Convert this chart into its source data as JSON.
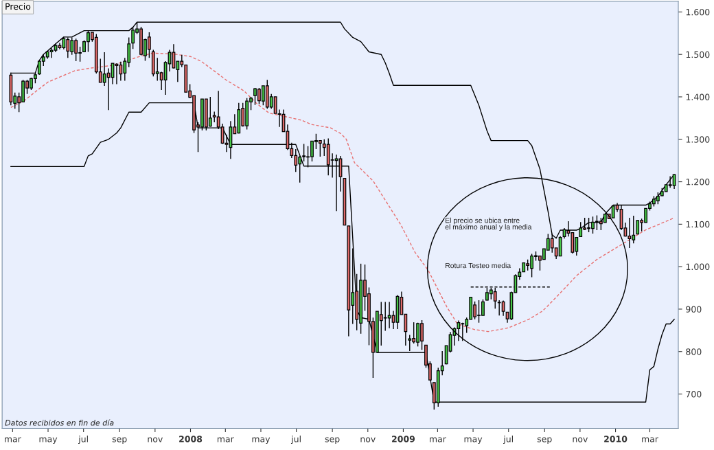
{
  "chart_data": {
    "type": "candlestick",
    "title": "Precio",
    "x": [
      "2007-02-26",
      "2007-03-05",
      "2007-03-12",
      "2007-03-19",
      "2007-03-26",
      "2007-04-02",
      "2007-04-09",
      "2007-04-16",
      "2007-04-23",
      "2007-04-30",
      "2007-05-07",
      "2007-05-14",
      "2007-05-21",
      "2007-05-28",
      "2007-06-04",
      "2007-06-11",
      "2007-06-18",
      "2007-06-25",
      "2007-07-02",
      "2007-07-09",
      "2007-07-16",
      "2007-07-23",
      "2007-07-30",
      "2007-08-06",
      "2007-08-13",
      "2007-08-20",
      "2007-08-27",
      "2007-09-03",
      "2007-09-10",
      "2007-09-17",
      "2007-09-24",
      "2007-10-01",
      "2007-10-08",
      "2007-10-15",
      "2007-10-22",
      "2007-10-29",
      "2007-11-05",
      "2007-11-12",
      "2007-11-19",
      "2007-11-26",
      "2007-12-03",
      "2007-12-10",
      "2007-12-17",
      "2007-12-24",
      "2007-12-31",
      "2008-01-07",
      "2008-01-14",
      "2008-01-21",
      "2008-01-28",
      "2008-02-04",
      "2008-02-11",
      "2008-02-18",
      "2008-02-25",
      "2008-03-03",
      "2008-03-10",
      "2008-03-17",
      "2008-03-24",
      "2008-03-31",
      "2008-04-07",
      "2008-04-14",
      "2008-04-21",
      "2008-04-28",
      "2008-05-05",
      "2008-05-12",
      "2008-05-19",
      "2008-05-26",
      "2008-06-02",
      "2008-06-09",
      "2008-06-16",
      "2008-06-23",
      "2008-06-30",
      "2008-07-07",
      "2008-07-14",
      "2008-07-21",
      "2008-07-28",
      "2008-08-04",
      "2008-08-11",
      "2008-08-18",
      "2008-08-25",
      "2008-09-01",
      "2008-09-08",
      "2008-09-15",
      "2008-09-22",
      "2008-09-29",
      "2008-10-06",
      "2008-10-13",
      "2008-10-20",
      "2008-10-27",
      "2008-11-03",
      "2008-11-10",
      "2008-11-17",
      "2008-11-24",
      "2008-12-01",
      "2008-12-08",
      "2008-12-15",
      "2008-12-22",
      "2008-12-29",
      "2009-01-05",
      "2009-01-12",
      "2009-01-19",
      "2009-01-26",
      "2009-02-02",
      "2009-02-09",
      "2009-02-16",
      "2009-02-23",
      "2009-03-02",
      "2009-03-09",
      "2009-03-16",
      "2009-03-23",
      "2009-03-30",
      "2009-04-06",
      "2009-04-13",
      "2009-04-20",
      "2009-04-27",
      "2009-05-04",
      "2009-05-11",
      "2009-05-18",
      "2009-05-25",
      "2009-06-01",
      "2009-06-08",
      "2009-06-15",
      "2009-06-22",
      "2009-06-29",
      "2009-07-06",
      "2009-07-13",
      "2009-07-20",
      "2009-07-27",
      "2009-08-03",
      "2009-08-10",
      "2009-08-17",
      "2009-08-24",
      "2009-08-31",
      "2009-09-07",
      "2009-09-14",
      "2009-09-21",
      "2009-09-28",
      "2009-10-05",
      "2009-10-12",
      "2009-10-19",
      "2009-10-26",
      "2009-11-02",
      "2009-11-09",
      "2009-11-16",
      "2009-11-23",
      "2009-11-30",
      "2009-12-07",
      "2009-12-14",
      "2009-12-21",
      "2009-12-28",
      "2010-01-04",
      "2010-01-11",
      "2010-01-18",
      "2010-01-25",
      "2010-02-01",
      "2010-02-08",
      "2010-02-15",
      "2010-02-22",
      "2010-03-01",
      "2010-03-08",
      "2010-03-15",
      "2010-03-22",
      "2010-03-29",
      "2010-04-05",
      "2010-04-12"
    ],
    "ohlc": [
      [
        1451,
        1457,
        1380,
        1388
      ],
      [
        1385,
        1410,
        1372,
        1402
      ],
      [
        1400,
        1410,
        1364,
        1386
      ],
      [
        1388,
        1440,
        1388,
        1437
      ],
      [
        1437,
        1440,
        1407,
        1421
      ],
      [
        1421,
        1445,
        1416,
        1443
      ],
      [
        1443,
        1457,
        1432,
        1452
      ],
      [
        1454,
        1486,
        1452,
        1484
      ],
      [
        1484,
        1500,
        1473,
        1494
      ],
      [
        1494,
        1508,
        1490,
        1506
      ],
      [
        1506,
        1515,
        1492,
        1510
      ],
      [
        1510,
        1525,
        1505,
        1521
      ],
      [
        1521,
        1527,
        1512,
        1516
      ],
      [
        1516,
        1541,
        1512,
        1537
      ],
      [
        1535,
        1540,
        1492,
        1508
      ],
      [
        1506,
        1540,
        1499,
        1533
      ],
      [
        1533,
        1537,
        1484,
        1503
      ],
      [
        1503,
        1518,
        1483,
        1504
      ],
      [
        1506,
        1533,
        1506,
        1530
      ],
      [
        1530,
        1556,
        1506,
        1551
      ],
      [
        1552,
        1552,
        1530,
        1535
      ],
      [
        1540,
        1548,
        1455,
        1459
      ],
      [
        1459,
        1490,
        1434,
        1434
      ],
      [
        1434,
        1505,
        1426,
        1454
      ],
      [
        1456,
        1467,
        1369,
        1446
      ],
      [
        1446,
        1479,
        1430,
        1479
      ],
      [
        1477,
        1479,
        1430,
        1474
      ],
      [
        1475,
        1483,
        1438,
        1454
      ],
      [
        1456,
        1492,
        1438,
        1484
      ],
      [
        1481,
        1540,
        1470,
        1525
      ],
      [
        1527,
        1564,
        1513,
        1557
      ],
      [
        1552,
        1576,
        1548,
        1560
      ],
      [
        1560,
        1565,
        1498,
        1500
      ],
      [
        1497,
        1537,
        1485,
        1535
      ],
      [
        1541,
        1552,
        1492,
        1512
      ],
      [
        1506,
        1511,
        1448,
        1454
      ],
      [
        1455,
        1492,
        1438,
        1459
      ],
      [
        1457,
        1459,
        1416,
        1440
      ],
      [
        1440,
        1484,
        1405,
        1481
      ],
      [
        1478,
        1511,
        1460,
        1505
      ],
      [
        1505,
        1524,
        1467,
        1468
      ],
      [
        1464,
        1484,
        1435,
        1484
      ],
      [
        1484,
        1499,
        1470,
        1476
      ],
      [
        1475,
        1475,
        1411,
        1411
      ],
      [
        1414,
        1430,
        1397,
        1399
      ],
      [
        1403,
        1403,
        1315,
        1322
      ],
      [
        1334,
        1340,
        1270,
        1329
      ],
      [
        1329,
        1395,
        1321,
        1395
      ],
      [
        1395,
        1395,
        1321,
        1329
      ],
      [
        1331,
        1400,
        1330,
        1350
      ],
      [
        1356,
        1365,
        1340,
        1353
      ],
      [
        1353,
        1414,
        1324,
        1329
      ],
      [
        1329,
        1337,
        1289,
        1291
      ],
      [
        1291,
        1311,
        1270,
        1288
      ],
      [
        1281,
        1343,
        1254,
        1329
      ],
      [
        1329,
        1359,
        1313,
        1313
      ],
      [
        1315,
        1386,
        1314,
        1370
      ],
      [
        1373,
        1386,
        1330,
        1332
      ],
      [
        1332,
        1397,
        1323,
        1390
      ],
      [
        1388,
        1400,
        1369,
        1397
      ],
      [
        1403,
        1421,
        1381,
        1419
      ],
      [
        1418,
        1421,
        1383,
        1391
      ],
      [
        1390,
        1426,
        1380,
        1426
      ],
      [
        1426,
        1440,
        1372,
        1376
      ],
      [
        1376,
        1407,
        1372,
        1400
      ],
      [
        1400,
        1400,
        1361,
        1361
      ],
      [
        1360,
        1370,
        1329,
        1359
      ],
      [
        1359,
        1370,
        1318,
        1318
      ],
      [
        1319,
        1335,
        1275,
        1278
      ],
      [
        1278,
        1292,
        1256,
        1262
      ],
      [
        1262,
        1277,
        1223,
        1239
      ],
      [
        1242,
        1261,
        1198,
        1258
      ],
      [
        1261,
        1289,
        1248,
        1259
      ],
      [
        1258,
        1284,
        1234,
        1258
      ],
      [
        1259,
        1296,
        1248,
        1296
      ],
      [
        1294,
        1313,
        1277,
        1297
      ],
      [
        1297,
        1297,
        1259,
        1291
      ],
      [
        1289,
        1300,
        1261,
        1281
      ],
      [
        1288,
        1302,
        1215,
        1240
      ],
      [
        1251,
        1267,
        1210,
        1251
      ],
      [
        1250,
        1264,
        1131,
        1254
      ],
      [
        1254,
        1261,
        1177,
        1212
      ],
      [
        1208,
        1208,
        1098,
        1098
      ],
      [
        1096,
        1096,
        836,
        898
      ],
      [
        909,
        1043,
        865,
        939
      ],
      [
        942,
        983,
        850,
        876
      ],
      [
        867,
        1007,
        842,
        968
      ],
      [
        968,
        1005,
        896,
        930
      ],
      [
        936,
        951,
        815,
        871
      ],
      [
        871,
        880,
        738,
        798
      ],
      [
        798,
        895,
        798,
        895
      ],
      [
        887,
        917,
        814,
        873
      ],
      [
        879,
        917,
        849,
        879
      ],
      [
        879,
        917,
        855,
        885
      ],
      [
        885,
        896,
        853,
        869
      ],
      [
        869,
        933,
        853,
        930
      ],
      [
        928,
        941,
        887,
        887
      ],
      [
        888,
        888,
        814,
        847
      ],
      [
        827,
        839,
        801,
        830
      ],
      [
        831,
        869,
        819,
        823
      ],
      [
        822,
        868,
        812,
        866
      ],
      [
        866,
        874,
        804,
        825
      ],
      [
        815,
        815,
        762,
        768
      ],
      [
        771,
        777,
        733,
        733
      ],
      [
        727,
        727,
        663,
        679
      ],
      [
        679,
        762,
        670,
        755
      ],
      [
        755,
        801,
        744,
        766
      ],
      [
        771,
        814,
        770,
        814
      ],
      [
        801,
        846,
        798,
        840
      ],
      [
        838,
        857,
        814,
        854
      ],
      [
        854,
        873,
        825,
        868
      ],
      [
        865,
        868,
        825,
        866
      ],
      [
        861,
        880,
        844,
        876
      ],
      [
        876,
        928,
        876,
        928
      ],
      [
        910,
        918,
        876,
        882
      ],
      [
        885,
        921,
        868,
        885
      ],
      [
        885,
        923,
        885,
        917
      ],
      [
        921,
        950,
        920,
        939
      ],
      [
        936,
        950,
        923,
        945
      ],
      [
        941,
        950,
        901,
        919
      ],
      [
        915,
        921,
        885,
        915
      ],
      [
        917,
        920,
        884,
        895
      ],
      [
        893,
        893,
        868,
        877
      ],
      [
        877,
        941,
        874,
        939
      ],
      [
        939,
        982,
        939,
        979
      ],
      [
        977,
        996,
        969,
        987
      ],
      [
        988,
        1009,
        988,
        1009
      ],
      [
        1007,
        1017,
        991,
        1003
      ],
      [
        996,
        1030,
        975,
        1025
      ],
      [
        1024,
        1036,
        1014,
        1026
      ],
      [
        1025,
        1025,
        991,
        1015
      ],
      [
        1017,
        1042,
        1017,
        1042
      ],
      [
        1039,
        1077,
        1039,
        1066
      ],
      [
        1066,
        1078,
        1033,
        1044
      ],
      [
        1044,
        1044,
        1018,
        1025
      ],
      [
        1025,
        1072,
        1025,
        1069
      ],
      [
        1071,
        1091,
        1066,
        1087
      ],
      [
        1085,
        1107,
        1071,
        1079
      ],
      [
        1080,
        1080,
        1031,
        1034
      ],
      [
        1036,
        1069,
        1026,
        1069
      ],
      [
        1071,
        1105,
        1071,
        1091
      ],
      [
        1091,
        1115,
        1086,
        1088
      ],
      [
        1090,
        1115,
        1081,
        1092
      ],
      [
        1090,
        1118,
        1078,
        1105
      ],
      [
        1105,
        1121,
        1086,
        1107
      ],
      [
        1107,
        1115,
        1086,
        1101
      ],
      [
        1104,
        1124,
        1104,
        1124
      ],
      [
        1124,
        1124,
        1113,
        1113
      ],
      [
        1115,
        1143,
        1115,
        1143
      ],
      [
        1145,
        1150,
        1129,
        1135
      ],
      [
        1135,
        1145,
        1086,
        1090
      ],
      [
        1091,
        1104,
        1071,
        1072
      ],
      [
        1072,
        1115,
        1044,
        1066
      ],
      [
        1063,
        1120,
        1055,
        1074
      ],
      [
        1077,
        1109,
        1077,
        1109
      ],
      [
        1109,
        1113,
        1083,
        1104
      ],
      [
        1104,
        1137,
        1104,
        1137
      ],
      [
        1137,
        1153,
        1132,
        1148
      ],
      [
        1148,
        1166,
        1142,
        1159
      ],
      [
        1155,
        1175,
        1147,
        1166
      ],
      [
        1167,
        1185,
        1166,
        1177
      ],
      [
        1177,
        1193,
        1177,
        1193
      ],
      [
        1193,
        1213,
        1186,
        1191
      ],
      [
        1191,
        1217,
        1183,
        1217
      ]
    ],
    "colors": [
      "#e06a6a",
      "#48c848",
      "#e06a6a",
      "#48c848",
      "#e06a6a",
      "#48c848",
      "#48c848",
      "#48c848",
      "#48c848",
      "#48c848",
      "#48c848",
      "#48c848",
      "#e06a6a",
      "#48c848",
      "#e06a6a",
      "#48c848",
      "#e06a6a",
      "#48c848",
      "#48c848",
      "#48c848",
      "#e06a6a",
      "#e06a6a",
      "#e06a6a",
      "#48c848",
      "#e06a6a",
      "#48c848",
      "#e06a6a",
      "#e06a6a",
      "#48c848",
      "#48c848",
      "#48c848",
      "#48c848",
      "#e06a6a",
      "#48c848",
      "#e06a6a",
      "#e06a6a",
      "#48c848",
      "#e06a6a",
      "#48c848",
      "#48c848",
      "#e06a6a",
      "#48c848",
      "#e06a6a",
      "#e06a6a",
      "#e06a6a",
      "#e06a6a",
      "#e06a6a",
      "#48c848",
      "#e06a6a",
      "#48c848",
      "#e06a6a",
      "#e06a6a",
      "#e06a6a",
      "#e06a6a",
      "#48c848",
      "#e06a6a",
      "#48c848",
      "#e06a6a",
      "#48c848",
      "#48c848",
      "#48c848",
      "#e06a6a",
      "#48c848",
      "#e06a6a",
      "#48c848",
      "#e06a6a",
      "#e06a6a",
      "#e06a6a",
      "#e06a6a",
      "#e06a6a",
      "#e06a6a",
      "#48c848",
      "#e06a6a",
      "#48c848",
      "#48c848",
      "#48c848",
      "#e06a6a",
      "#e06a6a",
      "#e06a6a",
      "#48c848",
      "#48c848",
      "#e06a6a",
      "#e06a6a",
      "#e06a6a",
      "#48c848",
      "#e06a6a",
      "#48c848",
      "#e06a6a",
      "#e06a6a",
      "#e06a6a",
      "#48c848",
      "#e06a6a",
      "#48c848",
      "#48c848",
      "#e06a6a",
      "#48c848",
      "#e06a6a",
      "#e06a6a",
      "#48c848",
      "#e06a6a",
      "#48c848",
      "#e06a6a",
      "#e06a6a",
      "#e06a6a",
      "#e06a6a",
      "#48c848",
      "#48c848",
      "#48c848",
      "#48c848",
      "#48c848",
      "#48c848",
      "#48c848",
      "#48c848",
      "#48c848",
      "#e06a6a",
      "#48c848",
      "#48c848",
      "#48c848",
      "#48c848",
      "#e06a6a",
      "#48c848",
      "#e06a6a",
      "#e06a6a",
      "#48c848",
      "#48c848",
      "#48c848",
      "#48c848",
      "#e06a6a",
      "#48c848",
      "#48c848",
      "#e06a6a",
      "#48c848",
      "#48c848",
      "#e06a6a",
      "#e06a6a",
      "#48c848",
      "#48c848",
      "#e06a6a",
      "#e06a6a",
      "#48c848",
      "#48c848",
      "#e06a6a",
      "#48c848",
      "#48c848",
      "#48c848",
      "#e06a6a",
      "#48c848",
      "#e06a6a",
      "#48c848",
      "#e06a6a",
      "#e06a6a",
      "#e06a6a",
      "#e06a6a",
      "#48c848",
      "#48c848",
      "#e06a6a",
      "#48c848",
      "#48c848",
      "#48c848",
      "#48c848",
      "#48c848",
      "#48c848",
      "#e06a6a",
      "#48c848"
    ],
    "series": [
      {
        "type": "line",
        "color": "#000000",
        "x": [
          "2007-02-26",
          "2007-04-09",
          "2007-04-16",
          "2007-04-23",
          "2007-04-30",
          "2007-05-14",
          "2007-05-28",
          "2007-06-11",
          "2007-07-02",
          "2007-09-17",
          "2007-09-24",
          "2007-10-01",
          "2008-09-15",
          "2008-09-22",
          "2008-10-06",
          "2008-10-20",
          "2008-11-03",
          "2008-11-24",
          "2008-12-01",
          "2008-12-08",
          "2008-12-15",
          "2009-04-27",
          "2009-05-11",
          "2009-05-25",
          "2009-06-01",
          "2009-08-03",
          "2009-08-10",
          "2009-08-24",
          "2009-09-07",
          "2009-09-14",
          "2009-09-21",
          "2009-09-28",
          "2009-10-26",
          "2009-11-02",
          "2009-11-16",
          "2009-12-07",
          "2009-12-14",
          "2009-12-28",
          "2010-02-22",
          "2010-03-01",
          "2010-03-15",
          "2010-03-29",
          "2010-04-12"
        ],
        "values": [
          1456,
          1456,
          1486,
          1500,
          1508,
          1525,
          1541,
          1541,
          1556,
          1556,
          1564,
          1576,
          1576,
          1560,
          1540,
          1530,
          1506,
          1500,
          1480,
          1455,
          1427,
          1427,
          1380,
          1320,
          1297,
          1297,
          1285,
          1230,
          1130,
          1075,
          1067,
          1086,
          1086,
          1090,
          1104,
          1104,
          1124,
          1145,
          1145,
          1150,
          1166,
          1193,
          1217
        ]
      },
      {
        "type": "line",
        "color": "#000000",
        "x": [
          "2007-02-26",
          "2007-07-02",
          "2007-07-09",
          "2007-07-16",
          "2007-07-30",
          "2007-08-13",
          "2007-08-27",
          "2007-09-03",
          "2007-09-17",
          "2007-10-08",
          "2007-10-22",
          "2008-01-07",
          "2008-01-14",
          "2008-02-25",
          "2008-03-10",
          "2008-06-30",
          "2008-07-14",
          "2008-09-29",
          "2008-10-13",
          "2008-10-20",
          "2008-11-03",
          "2008-11-17",
          "2009-02-09",
          "2009-02-23",
          "2010-02-22",
          "2010-03-01",
          "2010-03-08",
          "2010-03-15",
          "2010-03-22",
          "2010-03-29",
          "2010-04-05",
          "2010-04-12"
        ],
        "values": [
          1236,
          1236,
          1261,
          1266,
          1293,
          1300,
          1315,
          1327,
          1364,
          1364,
          1386,
          1386,
          1327,
          1327,
          1288,
          1288,
          1237,
          1237,
          898,
          880,
          876,
          798,
          798,
          681,
          681,
          757,
          765,
          806,
          840,
          865,
          865,
          876
        ]
      },
      {
        "type": "line",
        "color": "#e87070",
        "line_style": "dashed",
        "x": [
          "2007-02-26",
          "2007-03-22",
          "2007-04-11",
          "2007-05-01",
          "2007-05-25",
          "2007-06-17",
          "2007-07-14",
          "2007-08-19",
          "2007-10-05",
          "2007-10-28",
          "2007-12-03",
          "2008-01-01",
          "2008-01-19",
          "2008-02-05",
          "2008-03-02",
          "2008-04-02",
          "2008-04-25",
          "2008-05-15",
          "2008-07-10",
          "2008-07-27",
          "2008-08-29",
          "2008-09-16",
          "2008-09-25",
          "2008-10-09",
          "2008-11-10",
          "2008-12-04",
          "2008-12-28",
          "2009-01-21",
          "2009-02-13",
          "2009-03-17",
          "2009-04-04",
          "2009-05-03",
          "2009-05-27",
          "2009-07-01",
          "2009-08-05",
          "2009-08-29",
          "2009-09-21",
          "2009-10-27",
          "2009-12-01",
          "2010-01-09",
          "2010-02-21",
          "2010-04-12"
        ],
        "values": [
          1375,
          1392,
          1414,
          1435,
          1449,
          1462,
          1468,
          1474,
          1495,
          1503,
          1501,
          1495,
          1484,
          1467,
          1440,
          1414,
          1383,
          1362,
          1345,
          1335,
          1327,
          1313,
          1300,
          1245,
          1202,
          1150,
          1098,
          1034,
          991,
          905,
          865,
          852,
          847,
          856,
          876,
          896,
          928,
          980,
          1018,
          1050,
          1086,
          1115
        ]
      },
      {
        "type": "line",
        "color": "#000000",
        "line_style": "dashed",
        "x": [
          "2009-04-27",
          "2009-09-10"
        ],
        "values": [
          952,
          952
        ]
      }
    ],
    "xlim": [
      "2007-02-11",
      "2010-04-19"
    ],
    "xticks": [
      {
        "value": "2007-03-01",
        "label": "mar"
      },
      {
        "value": "2007-05-01",
        "label": "may"
      },
      {
        "value": "2007-07-01",
        "label": "jul"
      },
      {
        "value": "2007-09-01",
        "label": "sep"
      },
      {
        "value": "2007-11-01",
        "label": "nov"
      },
      {
        "value": "2008-01-01",
        "label": "2008"
      },
      {
        "value": "2008-03-01",
        "label": "mar"
      },
      {
        "value": "2008-05-01",
        "label": "may"
      },
      {
        "value": "2008-07-01",
        "label": "jul"
      },
      {
        "value": "2008-09-01",
        "label": "sep"
      },
      {
        "value": "2008-11-01",
        "label": "nov"
      },
      {
        "value": "2009-01-01",
        "label": "2009"
      },
      {
        "value": "2009-03-01",
        "label": "mar"
      },
      {
        "value": "2009-05-01",
        "label": "may"
      },
      {
        "value": "2009-07-01",
        "label": "jul"
      },
      {
        "value": "2009-09-01",
        "label": "sep"
      },
      {
        "value": "2009-11-01",
        "label": "nov"
      },
      {
        "value": "2010-01-01",
        "label": "2010"
      },
      {
        "value": "2010-03-01",
        "label": "mar"
      }
    ],
    "ylim": [
      619,
      1625
    ],
    "yticks": [
      700,
      800,
      900,
      {
        "value": 1000,
        "label": "1.000"
      },
      {
        "value": 1100,
        "label": "1.100"
      },
      {
        "value": 1200,
        "label": "1.200"
      },
      {
        "value": 1300,
        "label": "1.300"
      },
      {
        "value": 1400,
        "label": "1.400"
      },
      {
        "value": 1500,
        "label": "1.500"
      },
      {
        "value": 1600,
        "label": "1.600"
      }
    ],
    "annotations": [
      "El precio se ubica entre\nel máximo anual y la media",
      "Rotura Testeo media",
      "Datos recibidos en fin de día"
    ]
  }
}
